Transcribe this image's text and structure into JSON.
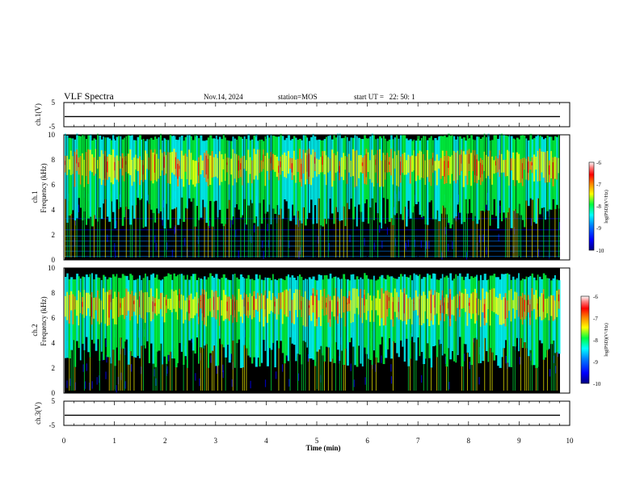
{
  "header": {
    "title": "VLF Spectra",
    "date": "Nov.14, 2024",
    "station_label": "station=",
    "station": "MOS",
    "start_label": "start  UT  =",
    "start_time": "22: 50: 1"
  },
  "chart_data": [
    {
      "type": "line",
      "name": "ch1-waveform",
      "ylabel": "ch.1(V)",
      "ylim": [
        -5,
        5
      ],
      "yticks": [
        "5",
        "-5"
      ],
      "xlim": [
        0,
        10
      ],
      "level": -0.8
    },
    {
      "type": "heatmap",
      "name": "ch1-spectrogram",
      "ylabel_top": "ch.1",
      "ylabel": "Frequency (kHz)",
      "ylim": [
        0,
        10
      ],
      "yticks": [
        "0",
        "2",
        "4",
        "6",
        "8",
        "10"
      ],
      "xlim": [
        0,
        10
      ],
      "colorbar": {
        "label": "log(PSD)(V²/Hz)",
        "range": [
          -10,
          -6
        ],
        "ticks": [
          "-6",
          "-7",
          "-8",
          "-9",
          "-10"
        ]
      },
      "band_khz": [
        5,
        9.5
      ]
    },
    {
      "type": "heatmap",
      "name": "ch2-spectrogram",
      "ylabel_top": "ch.2",
      "ylabel": "Frequency (kHz)",
      "ylim": [
        0,
        10
      ],
      "yticks": [
        "0",
        "2",
        "4",
        "6",
        "8",
        "10"
      ],
      "xlim": [
        0,
        10
      ],
      "colorbar": {
        "label": "log(PSD)(V²/Hz)",
        "range": [
          -10,
          -6
        ],
        "ticks": [
          "-6",
          "-7",
          "-8",
          "-9",
          "-10"
        ]
      },
      "band_khz": [
        4.5,
        9
      ]
    },
    {
      "type": "line",
      "name": "ch3-waveform",
      "ylabel": "ch.3(V)",
      "ylim": [
        -5,
        5
      ],
      "yticks": [
        "5",
        "-5"
      ],
      "xlim": [
        0,
        10
      ],
      "level": -0.8,
      "xlabel": "Time  (min)",
      "xticks": [
        "0",
        "1",
        "2",
        "3",
        "4",
        "5",
        "6",
        "7",
        "8",
        "9",
        "10"
      ]
    }
  ],
  "colors": {
    "colormap": [
      "#000080",
      "#0000ff",
      "#0080ff",
      "#00ffff",
      "#00ff40",
      "#ffff00",
      "#ff8000",
      "#ff0000",
      "#ff8080",
      "#ffffff"
    ]
  }
}
